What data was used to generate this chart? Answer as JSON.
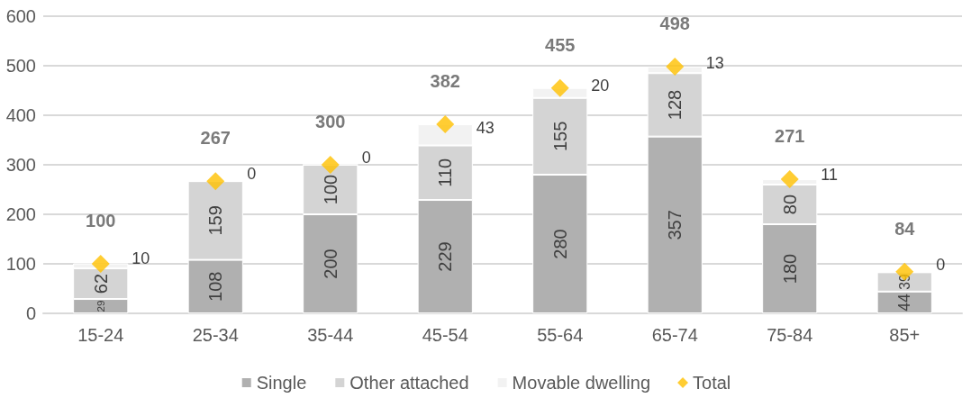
{
  "chart_data": {
    "type": "bar",
    "stacked": true,
    "categories": [
      "15-24",
      "25-34",
      "35-44",
      "45-54",
      "55-64",
      "65-74",
      "75-84",
      "85+"
    ],
    "series": [
      {
        "name": "Single",
        "color": "#b0b0b0",
        "values": [
          29,
          108,
          200,
          229,
          280,
          357,
          180,
          44
        ]
      },
      {
        "name": "Other attached",
        "color": "#d4d4d4",
        "values": [
          62,
          159,
          100,
          110,
          155,
          128,
          80,
          39
        ]
      },
      {
        "name": "Movable dwelling",
        "color": "#f2f2f2",
        "values": [
          10,
          0,
          0,
          43,
          20,
          13,
          11,
          0
        ]
      },
      {
        "name": "Total",
        "type": "scatter",
        "color": "#ffc000",
        "marker": "diamond",
        "x": [
          "15-24",
          "25-34",
          "35-44",
          "45-54",
          "55-64",
          "65-74",
          "75-84",
          "85+"
        ],
        "values": [
          100,
          267,
          300,
          382,
          455,
          498,
          271,
          84
        ]
      }
    ],
    "ylim": [
      0,
      600
    ],
    "yticks": [
      0,
      100,
      200,
      300,
      400,
      500,
      600
    ],
    "grid": "y",
    "legend": "bottom",
    "data_labels": true
  }
}
